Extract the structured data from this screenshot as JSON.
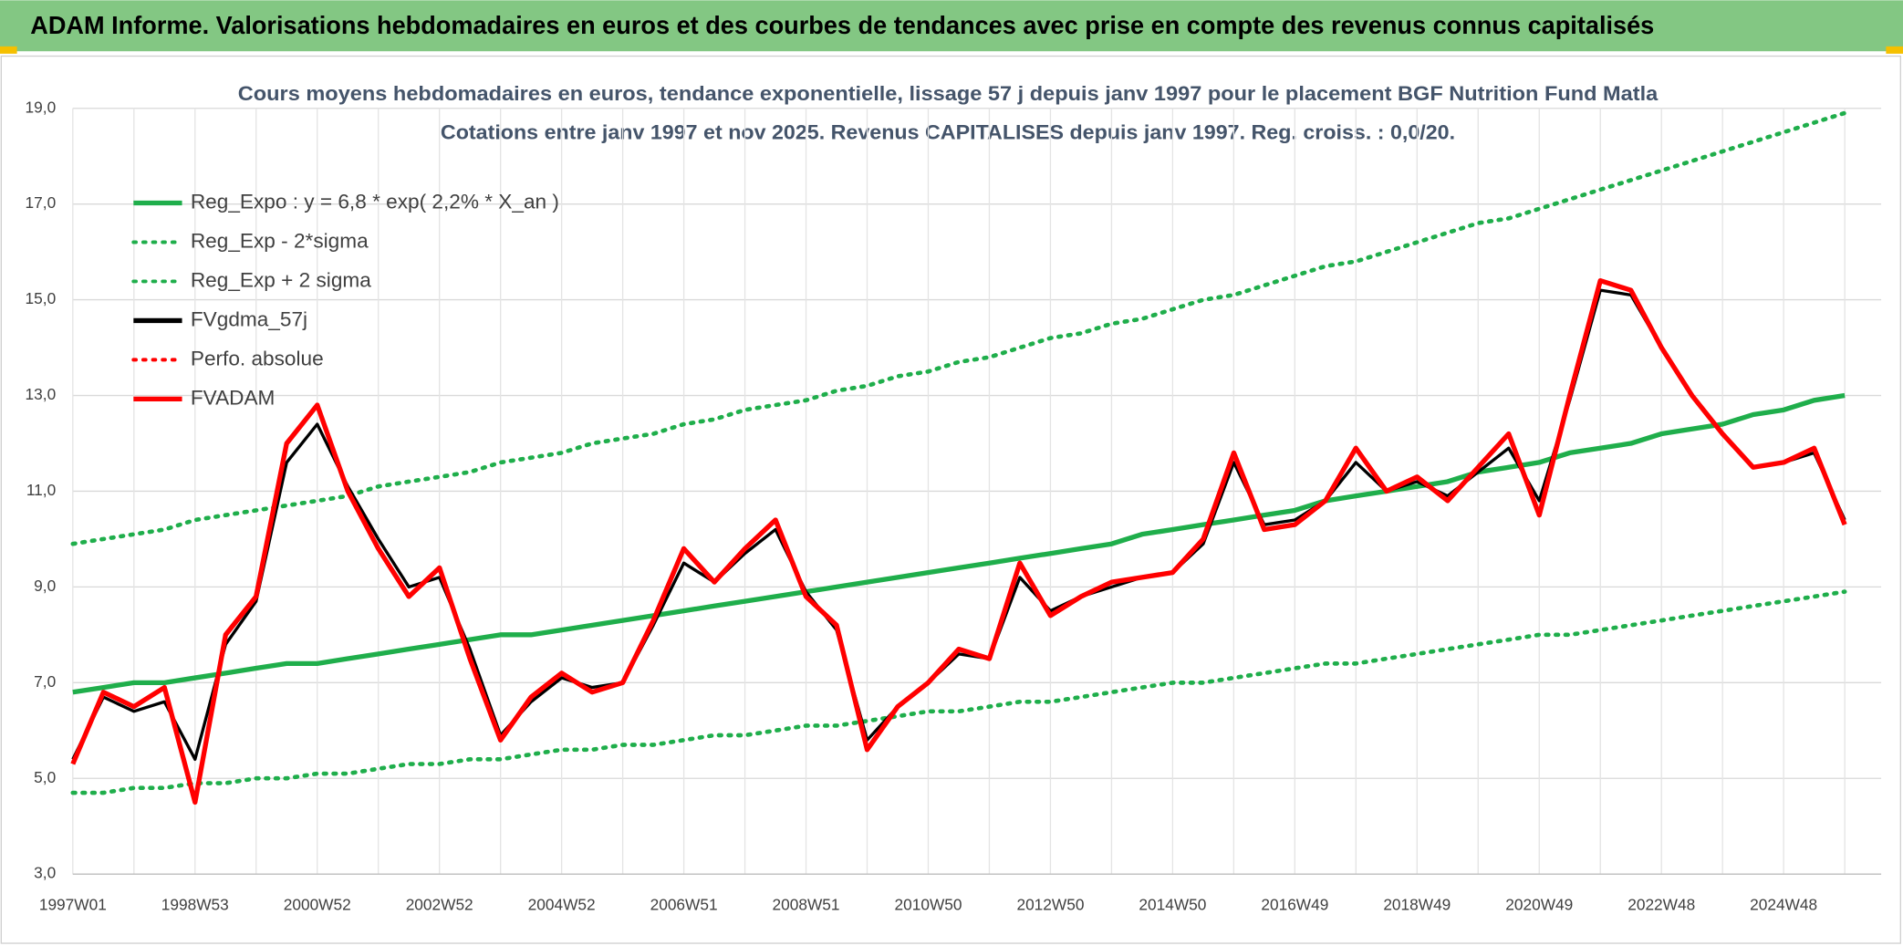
{
  "header": {
    "title": "ADAM Informe. Valorisations hebdomadaires en euros et des courbes de tendances avec prise en compte des revenus connus capitalisés"
  },
  "chart_data": {
    "type": "line",
    "title": "Cours moyens hebdomadaires en euros, tendance exponentielle, lissage 57 j depuis janv 1997 pour le placement BGF Nutrition Fund Matla",
    "subtitle": "Cotations entre janv 1997 et nov 2025. Revenus CAPITALISES depuis janv 1997. Reg. croiss. : 0,0/20.",
    "categories": [
      "1997W01",
      null,
      null,
      null,
      "1998W53",
      null,
      null,
      null,
      "2000W52",
      null,
      null,
      null,
      "2002W52",
      null,
      null,
      null,
      "2004W52",
      null,
      null,
      null,
      "2006W51",
      null,
      null,
      null,
      "2008W51",
      null,
      null,
      null,
      "2010W50",
      null,
      null,
      null,
      "2012W50",
      null,
      null,
      null,
      "2014W50",
      null,
      null,
      null,
      "2016W49",
      null,
      null,
      null,
      "2018W49",
      null,
      null,
      null,
      "2020W49",
      null,
      null,
      null,
      "2022W48",
      null,
      null,
      null,
      "2024W48",
      null,
      null
    ],
    "ylim": [
      3,
      19
    ],
    "yticks": [
      {
        "value": 3,
        "label": "3,0"
      },
      {
        "value": 5,
        "label": "5,0"
      },
      {
        "value": 7,
        "label": "7,0"
      },
      {
        "value": 9,
        "label": "9,0"
      },
      {
        "value": 11,
        "label": "11,0"
      },
      {
        "value": 13,
        "label": "13,0"
      },
      {
        "value": 15,
        "label": "15,0"
      },
      {
        "value": 17,
        "label": "17,0"
      },
      {
        "value": 19,
        "label": "19,0"
      }
    ],
    "grid": true,
    "legend": "upper left",
    "series": [
      {
        "name": "Reg_Expo : y = 6,8 * exp( 2,2% *  X_an )",
        "color": "#1fae4b",
        "style": "solid",
        "values": [
          6.8,
          6.9,
          7.0,
          7.0,
          7.1,
          7.2,
          7.3,
          7.4,
          7.4,
          7.5,
          7.6,
          7.7,
          7.8,
          7.9,
          8.0,
          8.0,
          8.1,
          8.2,
          8.3,
          8.4,
          8.5,
          8.6,
          8.7,
          8.8,
          8.9,
          9.0,
          9.1,
          9.2,
          9.3,
          9.4,
          9.5,
          9.6,
          9.7,
          9.8,
          9.9,
          10.1,
          10.2,
          10.3,
          10.4,
          10.5,
          10.6,
          10.8,
          10.9,
          11.0,
          11.1,
          11.2,
          11.4,
          11.5,
          11.6,
          11.8,
          11.9,
          12.0,
          12.2,
          12.3,
          12.4,
          12.6,
          12.7,
          12.9,
          13.0
        ]
      },
      {
        "name": "Reg_Exp - 2*sigma",
        "color": "#1fae4b",
        "style": "dotted",
        "values": [
          4.7,
          4.7,
          4.8,
          4.8,
          4.9,
          4.9,
          5.0,
          5.0,
          5.1,
          5.1,
          5.2,
          5.3,
          5.3,
          5.4,
          5.4,
          5.5,
          5.6,
          5.6,
          5.7,
          5.7,
          5.8,
          5.9,
          5.9,
          6.0,
          6.1,
          6.1,
          6.2,
          6.3,
          6.4,
          6.4,
          6.5,
          6.6,
          6.6,
          6.7,
          6.8,
          6.9,
          7.0,
          7.0,
          7.1,
          7.2,
          7.3,
          7.4,
          7.4,
          7.5,
          7.6,
          7.7,
          7.8,
          7.9,
          8.0,
          8.0,
          8.1,
          8.2,
          8.3,
          8.4,
          8.5,
          8.6,
          8.7,
          8.8,
          8.9
        ]
      },
      {
        "name": "Reg_Exp + 2 sigma",
        "color": "#1fae4b",
        "style": "dotted",
        "values": [
          9.9,
          10.0,
          10.1,
          10.2,
          10.4,
          10.5,
          10.6,
          10.7,
          10.8,
          10.9,
          11.1,
          11.2,
          11.3,
          11.4,
          11.6,
          11.7,
          11.8,
          12.0,
          12.1,
          12.2,
          12.4,
          12.5,
          12.7,
          12.8,
          12.9,
          13.1,
          13.2,
          13.4,
          13.5,
          13.7,
          13.8,
          14.0,
          14.2,
          14.3,
          14.5,
          14.6,
          14.8,
          15.0,
          15.1,
          15.3,
          15.5,
          15.7,
          15.8,
          16.0,
          16.2,
          16.4,
          16.6,
          16.7,
          16.9,
          17.1,
          17.3,
          17.5,
          17.7,
          17.9,
          18.1,
          18.3,
          18.5,
          18.7,
          18.9
        ]
      },
      {
        "name": "FVgdma_57j",
        "color": "#000000",
        "style": "solid",
        "values": [
          5.4,
          6.7,
          6.4,
          6.6,
          5.4,
          7.8,
          8.7,
          11.6,
          12.4,
          11.1,
          10.0,
          9.0,
          9.2,
          7.7,
          5.9,
          6.6,
          7.1,
          6.9,
          7.0,
          8.2,
          9.5,
          9.1,
          9.7,
          10.2,
          8.9,
          8.1,
          5.8,
          6.5,
          7.0,
          7.6,
          7.5,
          9.2,
          8.5,
          8.8,
          9.0,
          9.2,
          9.3,
          9.9,
          11.6,
          10.3,
          10.4,
          10.8,
          11.6,
          11.0,
          11.2,
          10.9,
          11.4,
          11.9,
          10.8,
          12.9,
          15.2,
          15.1,
          14.0,
          13.0,
          12.2,
          11.5,
          11.6,
          11.8,
          10.4
        ]
      },
      {
        "name": "Perfo. absolue",
        "color": "#ff0000",
        "style": "dotted",
        "values": [
          null,
          null,
          null,
          null,
          null,
          null,
          null,
          null,
          null,
          null,
          null,
          null,
          null,
          null,
          null,
          null,
          null,
          null,
          null,
          null,
          null,
          null,
          null,
          null,
          null,
          null,
          null,
          null,
          null,
          null,
          null,
          null,
          null,
          null,
          null,
          null,
          null,
          null,
          null,
          null,
          null,
          null,
          null,
          null,
          null,
          null,
          null,
          null,
          null,
          null,
          null,
          null,
          null,
          null,
          null,
          null,
          null,
          null,
          null
        ]
      },
      {
        "name": "FVADAM",
        "color": "#ff0000",
        "style": "solid",
        "values": [
          5.3,
          6.8,
          6.5,
          6.9,
          4.5,
          8.0,
          8.8,
          12.0,
          12.8,
          11.0,
          9.8,
          8.8,
          9.4,
          7.5,
          5.8,
          6.7,
          7.2,
          6.8,
          7.0,
          8.3,
          9.8,
          9.1,
          9.8,
          10.4,
          8.8,
          8.2,
          5.6,
          6.5,
          7.0,
          7.7,
          7.5,
          9.5,
          8.4,
          8.8,
          9.1,
          9.2,
          9.3,
          10.0,
          11.8,
          10.2,
          10.3,
          10.8,
          11.9,
          11.0,
          11.3,
          10.8,
          11.5,
          12.2,
          10.5,
          13.0,
          15.4,
          15.2,
          14.0,
          13.0,
          12.2,
          11.5,
          11.6,
          11.9,
          10.3
        ]
      }
    ]
  }
}
